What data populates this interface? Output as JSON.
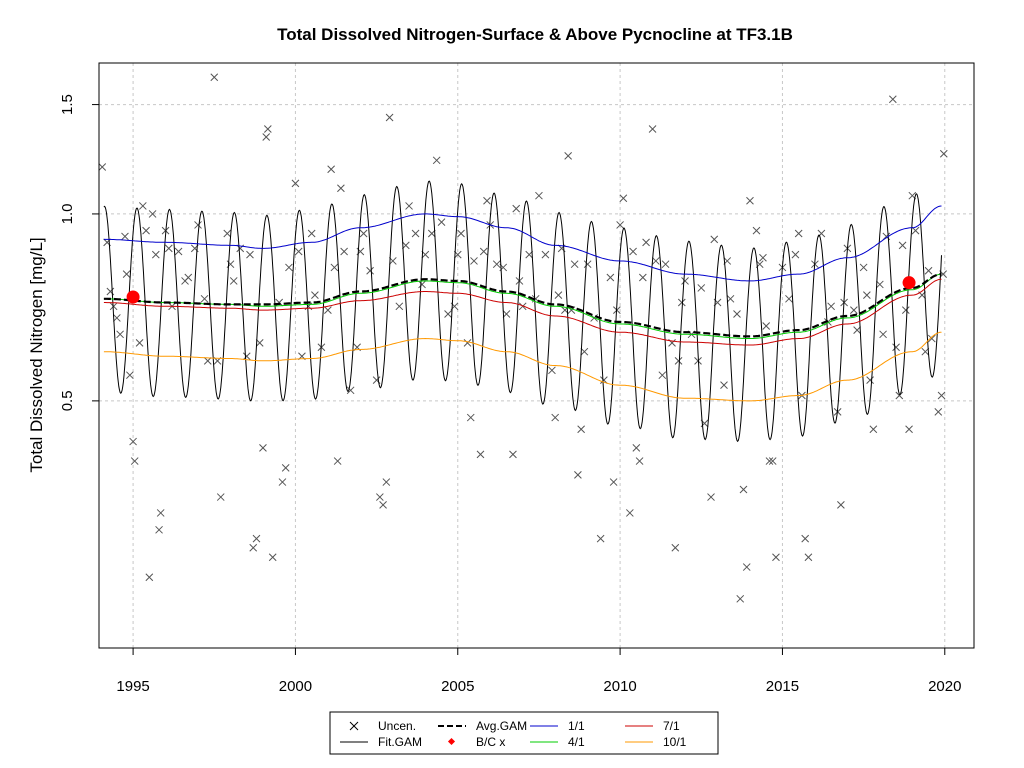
{
  "chart_data": {
    "type": "line",
    "title": "Total Dissolved Nitrogen-Surface & Above Pycnocline at TF3.1B",
    "xlabel": "",
    "ylabel": "Total Dissolved Nitrogen [mg/L]",
    "x_ticks": [
      "1995",
      "2000",
      "2005",
      "2010",
      "2015",
      "2020"
    ],
    "y_ticks": [
      "0.5",
      "1.0",
      "1.5"
    ],
    "xlim": [
      1993.95,
      2020.9
    ],
    "ylim": [
      0.2,
      1.75
    ],
    "y_scale": "log",
    "grid": true,
    "legend_position": "bottom",
    "legend": [
      {
        "label": "Uncen.",
        "symbol": "x",
        "color": "#000000"
      },
      {
        "label": "Fit.GAM",
        "symbol": "line",
        "color": "#000000"
      },
      {
        "label": "Avg.GAM",
        "symbol": "dashed-line",
        "color": "#000000"
      },
      {
        "label": "B/C x",
        "symbol": "dot",
        "color": "#ff0000"
      },
      {
        "label": "1/1",
        "symbol": "line",
        "color": "#0000cc"
      },
      {
        "label": "4/1",
        "symbol": "line",
        "color": "#00cc00"
      },
      {
        "label": "7/1",
        "symbol": "line",
        "color": "#cc0000"
      },
      {
        "label": "10/1",
        "symbol": "line",
        "color": "#ff9900"
      }
    ],
    "colors": {
      "fit": "#000000",
      "avg": "#000000",
      "jan": "#0000cc",
      "apr": "#00cc00",
      "jul": "#cc0000",
      "oct": "#ff9900",
      "bc": "#ff0000",
      "obs": "#555555",
      "grid": "#c8c8c8"
    },
    "series": [
      {
        "name": "1/1",
        "x": [
          1994.1,
          1996,
          1998,
          1999,
          2000.5,
          2002,
          2004,
          2005,
          2006.5,
          2008,
          2010,
          2012,
          2014,
          2015.5,
          2017,
          2019,
          2019.9
        ],
        "y": [
          0.91,
          0.9,
          0.89,
          0.88,
          0.9,
          0.95,
          1.0,
          0.99,
          0.95,
          0.89,
          0.84,
          0.8,
          0.78,
          0.8,
          0.85,
          0.95,
          1.03
        ]
      },
      {
        "name": "4/1",
        "x": [
          1994.1,
          1996,
          1998,
          1999,
          2000.5,
          2002,
          2004,
          2005,
          2006.5,
          2008,
          2010,
          2012,
          2014,
          2015.5,
          2017,
          2019,
          2019.9
        ],
        "y": [
          0.73,
          0.72,
          0.715,
          0.71,
          0.715,
          0.745,
          0.78,
          0.775,
          0.745,
          0.71,
          0.665,
          0.64,
          0.63,
          0.645,
          0.68,
          0.755,
          0.8
        ]
      },
      {
        "name": "7/1",
        "x": [
          1994.1,
          1996,
          1998,
          1999,
          2000.5,
          2002,
          2004,
          2005,
          2006.5,
          2008,
          2010,
          2012,
          2014,
          2015.5,
          2017,
          2019,
          2019.9
        ],
        "y": [
          0.72,
          0.71,
          0.705,
          0.7,
          0.705,
          0.725,
          0.75,
          0.745,
          0.72,
          0.685,
          0.645,
          0.622,
          0.615,
          0.63,
          0.665,
          0.74,
          0.785
        ]
      },
      {
        "name": "10/1",
        "x": [
          1994.1,
          1996,
          1998,
          1999,
          2000.5,
          2002,
          2004,
          2005,
          2006.5,
          2008,
          2010,
          2012,
          2014,
          2015.5,
          2017,
          2019,
          2019.9
        ],
        "y": [
          0.6,
          0.59,
          0.585,
          0.58,
          0.585,
          0.605,
          0.63,
          0.625,
          0.6,
          0.57,
          0.53,
          0.505,
          0.5,
          0.51,
          0.54,
          0.6,
          0.645
        ]
      },
      {
        "name": "Avg.GAM",
        "x": [
          1994.1,
          1996,
          1998,
          1999,
          2000.5,
          2002,
          2004,
          2005,
          2006.5,
          2008,
          2010,
          2012,
          2014,
          2015.5,
          2017,
          2019,
          2019.9
        ],
        "y": [
          0.73,
          0.72,
          0.715,
          0.715,
          0.72,
          0.75,
          0.785,
          0.78,
          0.75,
          0.715,
          0.67,
          0.645,
          0.635,
          0.65,
          0.685,
          0.76,
          0.8
        ]
      },
      {
        "name": "Fit.GAM",
        "amplitude_note": "seasonal cycle around Avg.GAM, peaks ~Feb, troughs ~Aug"
      }
    ],
    "bc_points": [
      {
        "x": 1995.0,
        "y": 0.735
      },
      {
        "x": 2018.9,
        "y": 0.775
      }
    ],
    "observations": [
      [
        1994.05,
        1.19
      ],
      [
        1994.2,
        0.9
      ],
      [
        1994.3,
        0.75
      ],
      [
        1994.4,
        0.71
      ],
      [
        1994.5,
        0.68
      ],
      [
        1994.6,
        0.64
      ],
      [
        1994.75,
        0.92
      ],
      [
        1994.8,
        0.8
      ],
      [
        1994.9,
        0.55
      ],
      [
        1995.0,
        0.43
      ],
      [
        1995.05,
        0.4
      ],
      [
        1995.2,
        0.62
      ],
      [
        1995.3,
        1.03
      ],
      [
        1995.4,
        0.94
      ],
      [
        1995.5,
        0.26
      ],
      [
        1995.6,
        1.0
      ],
      [
        1995.7,
        0.86
      ],
      [
        1995.8,
        0.31
      ],
      [
        1995.85,
        0.33
      ],
      [
        1996.0,
        0.94
      ],
      [
        1996.1,
        0.88
      ],
      [
        1996.2,
        0.71
      ],
      [
        1996.4,
        0.87
      ],
      [
        1996.6,
        0.78
      ],
      [
        1996.7,
        0.79
      ],
      [
        1996.9,
        0.88
      ],
      [
        1997.0,
        0.96
      ],
      [
        1997.2,
        0.73
      ],
      [
        1997.3,
        0.58
      ],
      [
        1997.5,
        1.66
      ],
      [
        1997.6,
        0.58
      ],
      [
        1997.7,
        0.35
      ],
      [
        1997.9,
        0.93
      ],
      [
        1998.0,
        0.83
      ],
      [
        1998.1,
        0.78
      ],
      [
        1998.3,
        0.88
      ],
      [
        1998.5,
        0.59
      ],
      [
        1998.6,
        0.86
      ],
      [
        1998.7,
        0.29
      ],
      [
        1998.8,
        0.3
      ],
      [
        1998.9,
        0.62
      ],
      [
        1999.0,
        0.42
      ],
      [
        1999.1,
        1.33
      ],
      [
        1999.15,
        1.37
      ],
      [
        1999.3,
        0.28
      ],
      [
        1999.5,
        0.72
      ],
      [
        1999.6,
        0.37
      ],
      [
        1999.7,
        0.39
      ],
      [
        1999.8,
        0.82
      ],
      [
        2000.0,
        1.12
      ],
      [
        2000.1,
        0.87
      ],
      [
        2000.2,
        0.59
      ],
      [
        2000.4,
        0.71
      ],
      [
        2000.5,
        0.93
      ],
      [
        2000.6,
        0.74
      ],
      [
        2000.8,
        0.61
      ],
      [
        2001.0,
        0.7
      ],
      [
        2001.1,
        1.18
      ],
      [
        2001.2,
        0.82
      ],
      [
        2001.3,
        0.4
      ],
      [
        2001.4,
        1.1
      ],
      [
        2001.5,
        0.87
      ],
      [
        2001.7,
        0.52
      ],
      [
        2001.9,
        0.61
      ],
      [
        2002.0,
        0.87
      ],
      [
        2002.1,
        0.93
      ],
      [
        2002.3,
        0.81
      ],
      [
        2002.5,
        0.54
      ],
      [
        2002.6,
        0.35
      ],
      [
        2002.7,
        0.34
      ],
      [
        2002.8,
        0.37
      ],
      [
        2002.9,
        1.43
      ],
      [
        2003.0,
        0.84
      ],
      [
        2003.2,
        0.71
      ],
      [
        2003.4,
        0.89
      ],
      [
        2003.5,
        1.03
      ],
      [
        2003.7,
        0.93
      ],
      [
        2003.9,
        0.77
      ],
      [
        2004.0,
        0.86
      ],
      [
        2004.2,
        0.93
      ],
      [
        2004.35,
        1.22
      ],
      [
        2004.5,
        0.97
      ],
      [
        2004.7,
        0.69
      ],
      [
        2004.9,
        0.71
      ],
      [
        2005.0,
        0.86
      ],
      [
        2005.1,
        0.93
      ],
      [
        2005.3,
        0.62
      ],
      [
        2005.4,
        0.47
      ],
      [
        2005.5,
        0.84
      ],
      [
        2005.7,
        0.41
      ],
      [
        2005.8,
        0.87
      ],
      [
        2005.9,
        1.05
      ],
      [
        2006.0,
        0.96
      ],
      [
        2006.2,
        0.83
      ],
      [
        2006.4,
        0.82
      ],
      [
        2006.5,
        0.69
      ],
      [
        2006.7,
        0.41
      ],
      [
        2006.8,
        1.02
      ],
      [
        2006.9,
        0.78
      ],
      [
        2007.0,
        0.71
      ],
      [
        2007.2,
        0.86
      ],
      [
        2007.4,
        0.73
      ],
      [
        2007.5,
        1.07
      ],
      [
        2007.7,
        0.86
      ],
      [
        2007.9,
        0.56
      ],
      [
        2008.0,
        0.47
      ],
      [
        2008.1,
        0.74
      ],
      [
        2008.2,
        0.88
      ],
      [
        2008.3,
        0.7
      ],
      [
        2008.4,
        1.24
      ],
      [
        2008.5,
        0.7
      ],
      [
        2008.6,
        0.83
      ],
      [
        2008.7,
        0.38
      ],
      [
        2008.8,
        0.45
      ],
      [
        2008.9,
        0.6
      ],
      [
        2009.0,
        0.83
      ],
      [
        2009.2,
        0.68
      ],
      [
        2009.4,
        0.3
      ],
      [
        2009.5,
        0.54
      ],
      [
        2009.7,
        0.79
      ],
      [
        2009.8,
        0.37
      ],
      [
        2009.9,
        0.7
      ],
      [
        2010.0,
        0.96
      ],
      [
        2010.1,
        1.06
      ],
      [
        2010.3,
        0.33
      ],
      [
        2010.4,
        0.87
      ],
      [
        2010.5,
        0.42
      ],
      [
        2010.6,
        0.4
      ],
      [
        2010.7,
        0.79
      ],
      [
        2010.8,
        0.9
      ],
      [
        2011.0,
        1.37
      ],
      [
        2011.1,
        0.84
      ],
      [
        2011.3,
        0.55
      ],
      [
        2011.4,
        0.83
      ],
      [
        2011.6,
        0.62
      ],
      [
        2011.7,
        0.29
      ],
      [
        2011.8,
        0.58
      ],
      [
        2011.9,
        0.72
      ],
      [
        2012.0,
        0.78
      ],
      [
        2012.2,
        0.64
      ],
      [
        2012.4,
        0.58
      ],
      [
        2012.5,
        0.76
      ],
      [
        2012.6,
        0.46
      ],
      [
        2012.8,
        0.35
      ],
      [
        2012.9,
        0.91
      ],
      [
        2013.0,
        0.72
      ],
      [
        2013.2,
        0.53
      ],
      [
        2013.3,
        0.84
      ],
      [
        2013.4,
        0.73
      ],
      [
        2013.6,
        0.69
      ],
      [
        2013.7,
        0.24
      ],
      [
        2013.8,
        0.36
      ],
      [
        2013.9,
        0.27
      ],
      [
        2014.0,
        1.05
      ],
      [
        2014.2,
        0.94
      ],
      [
        2014.3,
        0.83
      ],
      [
        2014.4,
        0.85
      ],
      [
        2014.5,
        0.66
      ],
      [
        2014.6,
        0.4
      ],
      [
        2014.7,
        0.4
      ],
      [
        2014.8,
        0.28
      ],
      [
        2015.0,
        0.82
      ],
      [
        2015.2,
        0.73
      ],
      [
        2015.4,
        0.86
      ],
      [
        2015.5,
        0.93
      ],
      [
        2015.6,
        0.51
      ],
      [
        2015.7,
        0.3
      ],
      [
        2015.8,
        0.28
      ],
      [
        2016.0,
        0.83
      ],
      [
        2016.2,
        0.93
      ],
      [
        2016.4,
        0.67
      ],
      [
        2016.5,
        0.71
      ],
      [
        2016.7,
        0.48
      ],
      [
        2016.8,
        0.34
      ],
      [
        2016.9,
        0.72
      ],
      [
        2017.0,
        0.88
      ],
      [
        2017.2,
        0.7
      ],
      [
        2017.3,
        0.65
      ],
      [
        2017.5,
        0.82
      ],
      [
        2017.6,
        0.74
      ],
      [
        2017.7,
        0.54
      ],
      [
        2017.8,
        0.45
      ],
      [
        2018.0,
        0.77
      ],
      [
        2018.1,
        0.64
      ],
      [
        2018.2,
        0.92
      ],
      [
        2018.4,
        1.53
      ],
      [
        2018.5,
        0.61
      ],
      [
        2018.6,
        0.51
      ],
      [
        2018.7,
        0.89
      ],
      [
        2018.8,
        0.7
      ],
      [
        2018.9,
        0.45
      ],
      [
        2019.0,
        1.07
      ],
      [
        2019.1,
        0.94
      ],
      [
        2019.3,
        0.74
      ],
      [
        2019.4,
        0.6
      ],
      [
        2019.5,
        0.81
      ],
      [
        2019.6,
        0.63
      ],
      [
        2019.8,
        0.48
      ],
      [
        2019.9,
        0.51
      ],
      [
        2019.95,
        0.8
      ],
      [
        2019.97,
        1.25
      ]
    ]
  }
}
